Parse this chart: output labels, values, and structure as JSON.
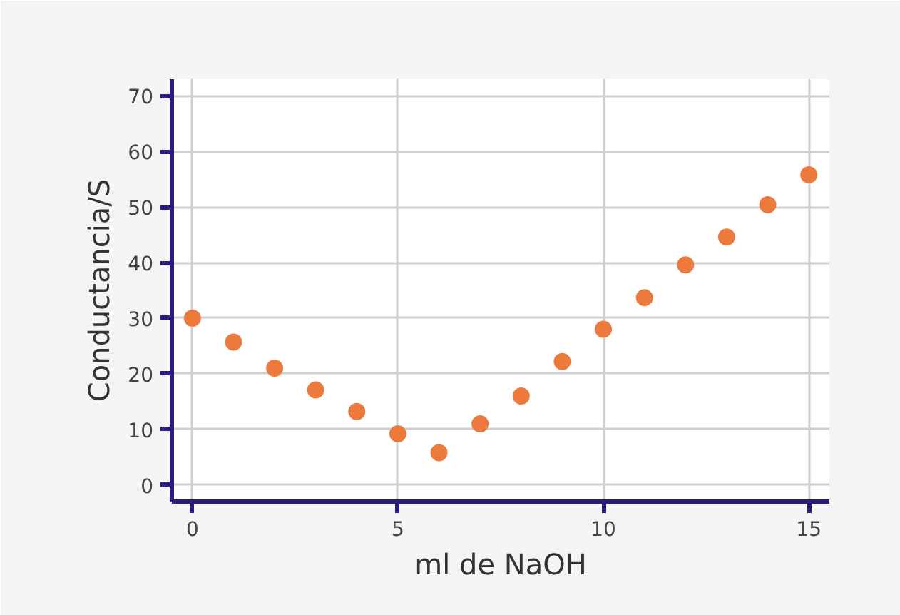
{
  "chart_data": {
    "type": "scatter",
    "xlabel": "ml de NaOH",
    "ylabel": "Conductancia/S",
    "x": [
      0,
      1,
      2,
      3,
      4,
      5,
      6,
      7,
      8,
      9,
      10,
      11,
      12,
      13,
      14,
      15
    ],
    "series": [
      {
        "color": "#ec7a3c",
        "values": [
          30.0,
          25.7,
          21.0,
          17.1,
          13.2,
          9.2,
          5.8,
          11.0,
          16.0,
          22.2,
          28.0,
          33.7,
          39.6,
          44.6,
          50.4,
          55.8
        ]
      }
    ],
    "xlim": [
      -0.5,
      15.5
    ],
    "ylim": [
      -3,
      73
    ],
    "xticks": [
      0,
      5,
      10,
      15
    ],
    "yticks": [
      0,
      10,
      20,
      30,
      40,
      50,
      60,
      70
    ],
    "grid": true,
    "marker": "circle"
  }
}
